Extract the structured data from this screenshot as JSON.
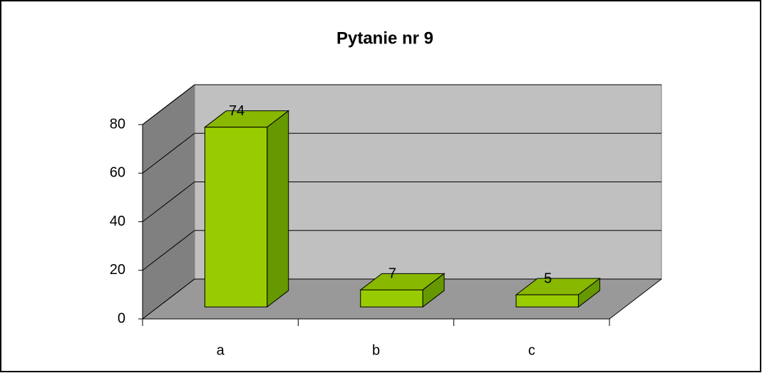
{
  "chart_data": {
    "type": "bar3d",
    "title": "Pytanie nr 9",
    "categories": [
      "a",
      "b",
      "c"
    ],
    "values": [
      74,
      7,
      5
    ],
    "color": "#99cc00",
    "ylim": [
      0,
      80
    ],
    "yticks": [
      0,
      20,
      40,
      60,
      80
    ],
    "grid": true
  }
}
